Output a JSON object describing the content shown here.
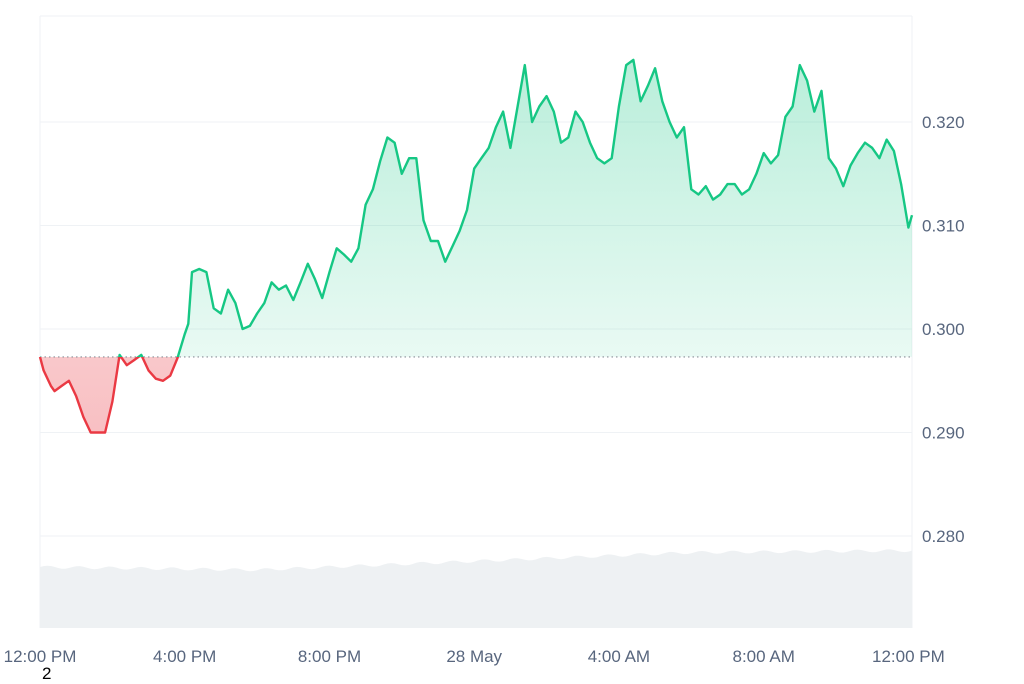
{
  "chart_data": {
    "type": "area",
    "title": "",
    "xlabel": "",
    "ylabel": "",
    "baseline": 0.2973,
    "ylim": [
      0.271,
      0.33
    ],
    "y_ticks": [
      "0.320",
      "0.310",
      "0.300",
      "0.290",
      "0.280"
    ],
    "y_tick_values": [
      0.32,
      0.31,
      0.3,
      0.29,
      0.28
    ],
    "x_ticks": [
      "12:00 PM",
      "4:00 PM",
      "8:00 PM",
      "28 May",
      "4:00 AM",
      "8:00 AM",
      "12:00 PM"
    ],
    "x_tick_hours": [
      0,
      4,
      8,
      12,
      16,
      20,
      24
    ],
    "series": [
      {
        "x_hours": [
          0.0,
          0.1,
          0.3,
          0.4,
          0.6,
          0.8,
          1.0,
          1.2,
          1.4,
          1.6,
          1.8,
          2.0,
          2.2,
          2.4,
          2.6,
          2.8,
          3.0,
          3.2,
          3.4,
          3.6,
          3.8,
          4.0,
          4.1,
          4.2,
          4.4,
          4.6,
          4.8,
          5.0,
          5.2,
          5.4,
          5.6,
          5.8,
          6.0,
          6.2,
          6.4,
          6.6,
          6.8,
          7.0,
          7.2,
          7.4,
          7.6,
          7.8,
          8.0,
          8.2,
          8.4,
          8.6,
          8.8,
          9.0,
          9.2,
          9.4,
          9.6,
          9.8,
          10.0,
          10.2,
          10.4,
          10.6,
          10.8,
          11.0,
          11.2,
          11.4,
          11.6,
          11.8,
          12.0,
          12.2,
          12.4,
          12.6,
          12.8,
          13.0,
          13.2,
          13.4,
          13.6,
          13.8,
          14.0,
          14.2,
          14.4,
          14.6,
          14.8,
          15.0,
          15.2,
          15.4,
          15.6,
          15.8,
          16.0,
          16.2,
          16.4,
          16.6,
          16.8,
          17.0,
          17.2,
          17.4,
          17.6,
          17.8,
          18.0,
          18.2,
          18.4,
          18.6,
          18.8,
          19.0,
          19.2,
          19.4,
          19.6,
          19.8,
          20.0,
          20.2,
          20.4,
          20.6,
          20.8,
          21.0,
          21.2,
          21.4,
          21.6,
          21.8,
          22.0,
          22.2,
          22.4,
          22.6,
          22.8,
          23.0,
          23.2,
          23.4,
          23.6,
          23.8,
          24.0,
          24.1
        ],
        "values": [
          0.2973,
          0.296,
          0.2945,
          0.294,
          0.2945,
          0.295,
          0.2935,
          0.2915,
          0.29,
          0.29,
          0.29,
          0.293,
          0.2975,
          0.2965,
          0.297,
          0.2975,
          0.296,
          0.2952,
          0.295,
          0.2955,
          0.2972,
          0.2995,
          0.3005,
          0.3055,
          0.3058,
          0.3055,
          0.302,
          0.3015,
          0.3038,
          0.3025,
          0.3,
          0.3003,
          0.3015,
          0.3025,
          0.3045,
          0.3038,
          0.3042,
          0.3028,
          0.3045,
          0.3063,
          0.3048,
          0.303,
          0.3055,
          0.3078,
          0.3072,
          0.3065,
          0.3078,
          0.312,
          0.3135,
          0.3162,
          0.3185,
          0.318,
          0.315,
          0.3165,
          0.3165,
          0.3105,
          0.3085,
          0.3085,
          0.3065,
          0.308,
          0.3095,
          0.3115,
          0.3155,
          0.3165,
          0.3175,
          0.3195,
          0.321,
          0.3175,
          0.3215,
          0.3255,
          0.32,
          0.3215,
          0.3225,
          0.321,
          0.318,
          0.3185,
          0.321,
          0.32,
          0.318,
          0.3165,
          0.316,
          0.3165,
          0.3215,
          0.3255,
          0.326,
          0.322,
          0.3235,
          0.3252,
          0.322,
          0.32,
          0.3185,
          0.3195,
          0.3135,
          0.313,
          0.3138,
          0.3125,
          0.313,
          0.314,
          0.314,
          0.313,
          0.3135,
          0.315,
          0.317,
          0.316,
          0.3168,
          0.3205,
          0.3215,
          0.3255,
          0.324,
          0.321,
          0.323,
          0.3165,
          0.3155,
          0.3138,
          0.3158,
          0.317,
          0.318,
          0.3175,
          0.3165,
          0.3183,
          0.3172,
          0.314,
          0.3098,
          0.311
        ]
      }
    ],
    "volume_profile": {
      "x_hours": [
        0,
        6,
        12,
        18,
        24.1
      ],
      "relative_height": [
        0.63,
        0.6,
        0.69,
        0.78,
        0.8
      ]
    },
    "grid": true,
    "legend": "none"
  },
  "colors": {
    "up": "#16c784",
    "down": "#ea3943",
    "up_fill_top": "#c9f2de",
    "down_fill": "#f5a7aa",
    "grid": "#eff2f5",
    "volume": "#eef1f3",
    "baseline": "#8a8f98"
  },
  "footnote": "2"
}
